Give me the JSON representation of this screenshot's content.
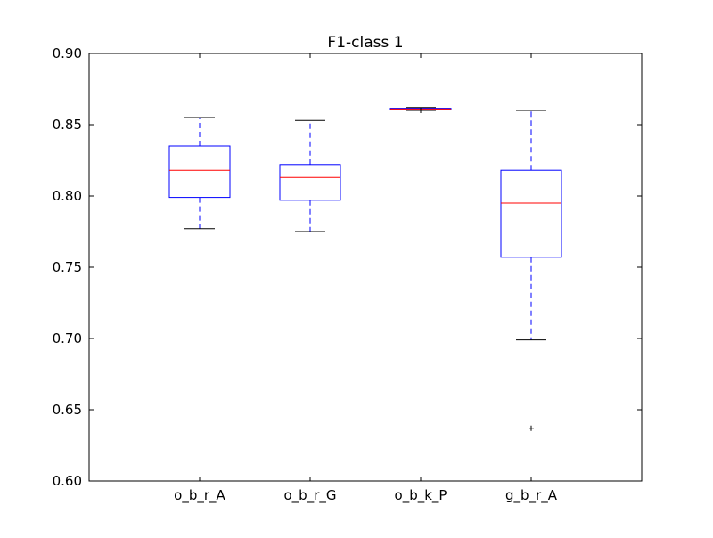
{
  "chart_data": {
    "type": "box",
    "title": "F1-class 1",
    "xlabel": "",
    "ylabel": "",
    "ylim": [
      0.6,
      0.9
    ],
    "ytick_labels": [
      "0.60",
      "0.65",
      "0.70",
      "0.75",
      "0.80",
      "0.85",
      "0.90"
    ],
    "ytick_values": [
      0.6,
      0.65,
      0.7,
      0.75,
      0.8,
      0.85,
      0.9
    ],
    "grid": false,
    "categories": [
      "o_b_r_A",
      "o_b_r_G",
      "o_b_k_P",
      "g_b_r_A"
    ],
    "boxes": [
      {
        "label": "o_b_r_A",
        "whisker_low": 0.777,
        "q1": 0.799,
        "median": 0.818,
        "q3": 0.835,
        "whisker_high": 0.855,
        "outliers": []
      },
      {
        "label": "o_b_r_G",
        "whisker_low": 0.775,
        "q1": 0.797,
        "median": 0.813,
        "q3": 0.822,
        "whisker_high": 0.853,
        "outliers": []
      },
      {
        "label": "o_b_k_P",
        "whisker_low": 0.86,
        "q1": 0.8605,
        "median": 0.861,
        "q3": 0.8615,
        "whisker_high": 0.862,
        "outliers": [
          0.86
        ]
      },
      {
        "label": "g_b_r_A",
        "whisker_low": 0.699,
        "q1": 0.757,
        "median": 0.795,
        "q3": 0.818,
        "whisker_high": 0.86,
        "outliers": [
          0.637
        ]
      }
    ],
    "colors": {
      "box": "#0000ff",
      "whisker": "#0000ff",
      "cap": "#000000",
      "median": "#ff0000",
      "axis": "#000000"
    }
  }
}
